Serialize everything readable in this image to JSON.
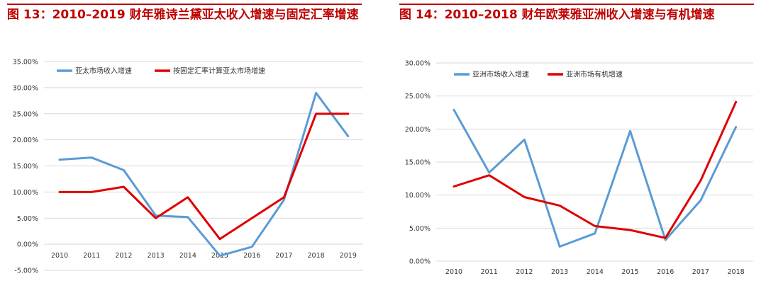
{
  "titles": {
    "left": "图 13：2010–2019 财年雅诗兰黛亚太收入增速与固定汇率增速",
    "right": "图 14：2010–2018 财年欧莱雅亚洲收入增速与有机增速"
  },
  "colors": {
    "blue": "#5b9bd5",
    "red": "#e00000",
    "grid": "#d9d9d9",
    "title": "#c00000"
  },
  "chart_data": [
    {
      "type": "line",
      "categories": [
        "2010",
        "2011",
        "2012",
        "2013",
        "2014",
        "2015",
        "2016",
        "2017",
        "2018",
        "2019"
      ],
      "ylim": [
        -0.05,
        0.35
      ],
      "yticks": [
        "-5.00%",
        "0.00%",
        "5.00%",
        "10.00%",
        "15.00%",
        "20.00%",
        "25.00%",
        "30.00%",
        "35.00%"
      ],
      "legend_position": "top-left",
      "grid": true,
      "series": [
        {
          "name": "亚太市场收入增速",
          "color": "#5b9bd5",
          "values": [
            0.162,
            0.166,
            0.142,
            0.055,
            0.052,
            -0.022,
            -0.005,
            0.085,
            0.29,
            0.207
          ]
        },
        {
          "name": "按固定汇率计算亚太市场增速",
          "color": "#e00000",
          "values": [
            0.1,
            0.1,
            0.11,
            0.05,
            0.09,
            0.01,
            0.05,
            0.09,
            0.25,
            0.25
          ]
        }
      ]
    },
    {
      "type": "line",
      "categories": [
        "2010",
        "2011",
        "2012",
        "2013",
        "2014",
        "2015",
        "2016",
        "2017",
        "2018"
      ],
      "ylim": [
        0,
        0.3
      ],
      "yticks": [
        "0.00%",
        "5.00%",
        "10.00%",
        "15.00%",
        "20.00%",
        "25.00%",
        "30.00%"
      ],
      "legend_position": "top-left",
      "grid": true,
      "series": [
        {
          "name": "亚洲市场收入增速",
          "color": "#5b9bd5",
          "values": [
            0.229,
            0.134,
            0.184,
            0.022,
            0.042,
            0.197,
            0.032,
            0.092,
            0.203
          ]
        },
        {
          "name": "亚洲市场有机增速",
          "color": "#e00000",
          "values": [
            0.113,
            0.13,
            0.097,
            0.084,
            0.053,
            0.047,
            0.035,
            0.122,
            0.241
          ]
        }
      ]
    }
  ]
}
